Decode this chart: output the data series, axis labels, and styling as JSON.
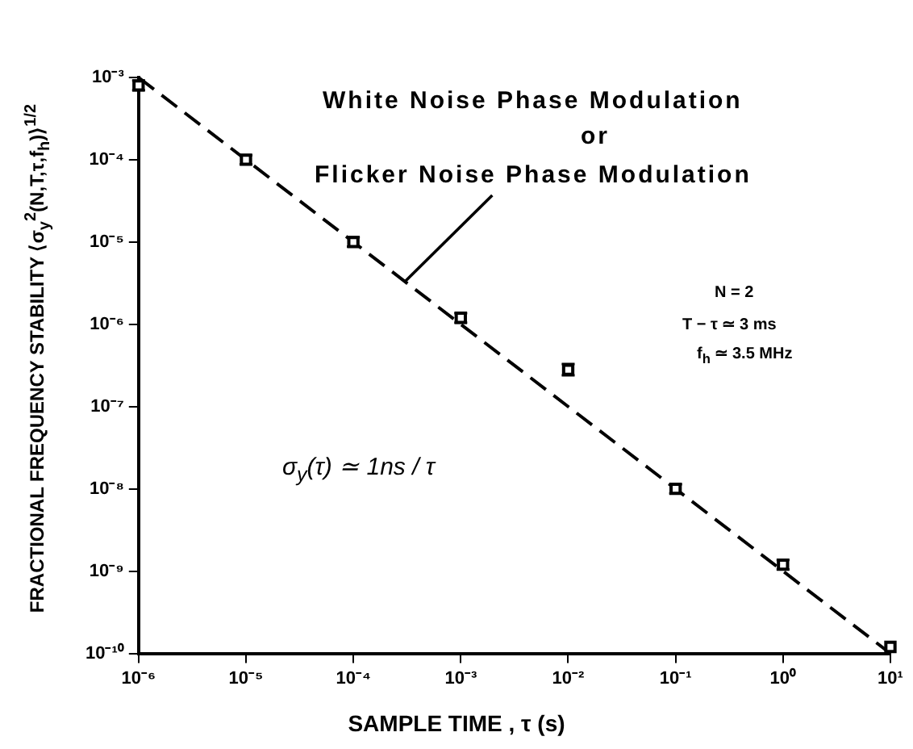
{
  "chart_data": {
    "type": "scatter",
    "xlabel": "SAMPLE TIME , τ (s)",
    "ylabel": "FRACTIONAL FREQUENCY STABILITY ⟨σ$_{y}$$^{2}$(N,T,τ,f$_{h}$)⟩$^{1/2}$",
    "x": [
      1e-06,
      1e-05,
      0.0001,
      0.001,
      0.01,
      0.1,
      1,
      10
    ],
    "series": [
      {
        "type": "scatter",
        "color": "#000000",
        "values": [
          0.0008,
          0.0001,
          1e-05,
          1.2e-06,
          2.8e-07,
          1e-08,
          1.2e-09,
          1.2e-10
        ],
        "errors": [
          [
            0.0007,
            0.00092
          ],
          [
            8.8e-05,
            0.000114
          ],
          [
            8.8e-06,
            1.14e-05
          ],
          [
            1.05e-06,
            1.37e-06
          ],
          [
            2.4e-07,
            3.3e-07
          ],
          [
            8.8e-09,
            1.14e-08
          ],
          [
            1.05e-09,
            1.37e-09
          ],
          null
        ],
        "marker": "square"
      },
      {
        "type": "line",
        "color": "#000000",
        "x": [
          1e-06,
          10
        ],
        "values": [
          0.001,
          1e-10
        ],
        "line_style": "dashed",
        "marker": "none"
      }
    ],
    "log": "xy",
    "grid": false,
    "legend": false,
    "xlim": [
      1e-06,
      10
    ],
    "ylim": [
      1e-10,
      0.001
    ],
    "xticks": [
      {
        "value": 1e-06,
        "label": "10⁻⁶"
      },
      {
        "value": 1e-05,
        "label": "10⁻⁵"
      },
      {
        "value": 0.0001,
        "label": "10⁻⁴"
      },
      {
        "value": 0.001,
        "label": "10⁻³"
      },
      {
        "value": 0.01,
        "label": "10⁻²"
      },
      {
        "value": 0.1,
        "label": "10⁻¹"
      },
      {
        "value": 1,
        "label": "10⁰"
      },
      {
        "value": 10,
        "label": "10¹"
      }
    ],
    "yticks": [
      {
        "value": 0.001,
        "label": "10⁻³"
      },
      {
        "value": 0.0001,
        "label": "10⁻⁴"
      },
      {
        "value": 1e-05,
        "label": "10⁻⁵"
      },
      {
        "value": 1e-06,
        "label": "10⁻⁶"
      },
      {
        "value": 1e-07,
        "label": "10⁻⁷"
      },
      {
        "value": 1e-08,
        "label": "10⁻⁸"
      },
      {
        "value": 1e-09,
        "label": "10⁻⁹"
      },
      {
        "value": 1e-10,
        "label": "10⁻¹⁰"
      }
    ],
    "annotations": [
      "White Noise Phase Modulation",
      "or",
      {
        "text": "Flicker Noise Phase Modulation",
        "x": 0.0003,
        "y": 3.3e-06
      },
      "N = 2",
      "T − τ ≃ 3 ms",
      "f$_{h}$ ≃ 3.5 MHz",
      "σ$_{y}$(τ) ≃ 1ns / τ"
    ]
  }
}
